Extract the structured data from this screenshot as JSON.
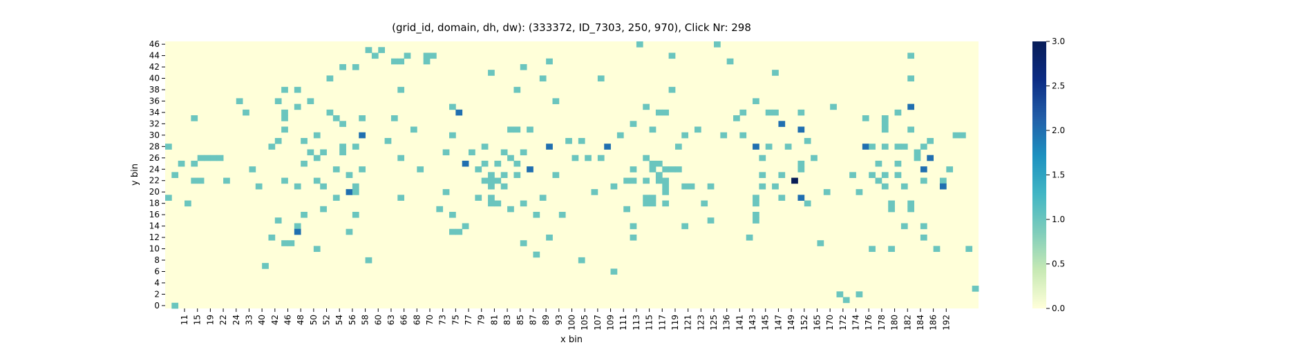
{
  "chart_data": {
    "type": "heatmap",
    "title": "(grid_id, domain, dh, dw): (333372, ID_7303, 250, 970), Click Nr: 298",
    "xlabel": "x bin",
    "ylabel": "y bin",
    "x_tick_labels": [
      "11",
      "15",
      "19",
      "22",
      "24",
      "33",
      "40",
      "42",
      "46",
      "48",
      "50",
      "52",
      "54",
      "56",
      "58",
      "60",
      "63",
      "66",
      "68",
      "70",
      "73",
      "75",
      "77",
      "79",
      "81",
      "83",
      "85",
      "87",
      "89",
      "93",
      "100",
      "105",
      "107",
      "109",
      "111",
      "113",
      "115",
      "117",
      "119",
      "121",
      "123",
      "125",
      "136",
      "141",
      "143",
      "145",
      "147",
      "149",
      "152",
      "165",
      "170",
      "172",
      "174",
      "176",
      "178",
      "180",
      "182",
      "184",
      "186",
      "192"
    ],
    "y_tick_labels": [
      "0",
      "2",
      "4",
      "6",
      "8",
      "10",
      "12",
      "14",
      "16",
      "18",
      "20",
      "22",
      "24",
      "26",
      "28",
      "30",
      "32",
      "34",
      "36",
      "38",
      "40",
      "42",
      "44",
      "46"
    ],
    "n_rows": 47,
    "colorbar": {
      "colormap": "YlGnBu",
      "range": [
        0,
        3.0
      ],
      "tick_labels": [
        "0.0",
        "0.5",
        "1.0",
        "1.5",
        "2.0",
        "2.5",
        "3.0"
      ],
      "colors": [
        "#ffffd9",
        "#c7e9b4",
        "#7fcdbb",
        "#41b6c4",
        "#1d91c0",
        "#225ea8",
        "#0c2c84",
        "#081d58"
      ]
    },
    "cells": [
      [
        0,
        19,
        1
      ],
      [
        0,
        28,
        1
      ],
      [
        1,
        0,
        1
      ],
      [
        1,
        23,
        1
      ],
      [
        2,
        25,
        1
      ],
      [
        3,
        18,
        1
      ],
      [
        4,
        33,
        1
      ],
      [
        4,
        25,
        1
      ],
      [
        4,
        22,
        1
      ],
      [
        5,
        22,
        1
      ],
      [
        5,
        26,
        1
      ],
      [
        6,
        26,
        1
      ],
      [
        7,
        26,
        1
      ],
      [
        8,
        26,
        1
      ],
      [
        9,
        22,
        1
      ],
      [
        11,
        36,
        1
      ],
      [
        12,
        34,
        1
      ],
      [
        13,
        24,
        1
      ],
      [
        14,
        21,
        1
      ],
      [
        15,
        7,
        1
      ],
      [
        16,
        12,
        1
      ],
      [
        16,
        28,
        1
      ],
      [
        17,
        36,
        1
      ],
      [
        17,
        29,
        1
      ],
      [
        17,
        15,
        1
      ],
      [
        18,
        38,
        1
      ],
      [
        18,
        34,
        1
      ],
      [
        18,
        33,
        1
      ],
      [
        18,
        31,
        1
      ],
      [
        18,
        22,
        1
      ],
      [
        18,
        11,
        1
      ],
      [
        19,
        11,
        1
      ],
      [
        20,
        38,
        1
      ],
      [
        20,
        35,
        1
      ],
      [
        20,
        21,
        1
      ],
      [
        20,
        14,
        1
      ],
      [
        20,
        13,
        2
      ],
      [
        21,
        29,
        1
      ],
      [
        21,
        25,
        1
      ],
      [
        21,
        16,
        1
      ],
      [
        22,
        36,
        1
      ],
      [
        22,
        27,
        1
      ],
      [
        23,
        30,
        1
      ],
      [
        23,
        26,
        1
      ],
      [
        23,
        22,
        1
      ],
      [
        23,
        10,
        1
      ],
      [
        24,
        27,
        1
      ],
      [
        24,
        21,
        1
      ],
      [
        24,
        17,
        1
      ],
      [
        25,
        40,
        1
      ],
      [
        25,
        34,
        1
      ],
      [
        26,
        33,
        1
      ],
      [
        26,
        24,
        1
      ],
      [
        26,
        19,
        1
      ],
      [
        27,
        42,
        1
      ],
      [
        27,
        32,
        1
      ],
      [
        27,
        28,
        1
      ],
      [
        27,
        27,
        1
      ],
      [
        28,
        23,
        1
      ],
      [
        28,
        20,
        2
      ],
      [
        28,
        13,
        1
      ],
      [
        29,
        42,
        1
      ],
      [
        29,
        28,
        1
      ],
      [
        29,
        21,
        1
      ],
      [
        29,
        20,
        1
      ],
      [
        29,
        16,
        1
      ],
      [
        30,
        33,
        1
      ],
      [
        30,
        30,
        2
      ],
      [
        30,
        24,
        1
      ],
      [
        31,
        45,
        1
      ],
      [
        31,
        8,
        1
      ],
      [
        32,
        44,
        1
      ],
      [
        33,
        45,
        1
      ],
      [
        34,
        29,
        1
      ],
      [
        35,
        43,
        1
      ],
      [
        35,
        33,
        1
      ],
      [
        36,
        43,
        1
      ],
      [
        36,
        38,
        1
      ],
      [
        36,
        26,
        1
      ],
      [
        36,
        19,
        1
      ],
      [
        37,
        44,
        1
      ],
      [
        38,
        31,
        1
      ],
      [
        39,
        24,
        1
      ],
      [
        40,
        44,
        1
      ],
      [
        40,
        43,
        1
      ],
      [
        41,
        44,
        1
      ],
      [
        42,
        17,
        1
      ],
      [
        43,
        27,
        1
      ],
      [
        43,
        20,
        1
      ],
      [
        44,
        35,
        1
      ],
      [
        44,
        30,
        1
      ],
      [
        44,
        16,
        1
      ],
      [
        44,
        13,
        1
      ],
      [
        45,
        34,
        2
      ],
      [
        45,
        13,
        1
      ],
      [
        46,
        25,
        2
      ],
      [
        46,
        14,
        1
      ],
      [
        47,
        27,
        1
      ],
      [
        48,
        24,
        1
      ],
      [
        48,
        19,
        1
      ],
      [
        49,
        28,
        1
      ],
      [
        49,
        25,
        1
      ],
      [
        49,
        22,
        1
      ],
      [
        50,
        41,
        1
      ],
      [
        50,
        23,
        1
      ],
      [
        50,
        22,
        1
      ],
      [
        50,
        21,
        1
      ],
      [
        50,
        19,
        1
      ],
      [
        50,
        18,
        1
      ],
      [
        51,
        25,
        1
      ],
      [
        51,
        22,
        1
      ],
      [
        51,
        18,
        1
      ],
      [
        52,
        27,
        1
      ],
      [
        52,
        23,
        1
      ],
      [
        52,
        21,
        1
      ],
      [
        53,
        31,
        1
      ],
      [
        53,
        26,
        1
      ],
      [
        53,
        17,
        1
      ],
      [
        54,
        38,
        1
      ],
      [
        54,
        31,
        1
      ],
      [
        54,
        25,
        1
      ],
      [
        54,
        23,
        1
      ],
      [
        55,
        42,
        1
      ],
      [
        55,
        27,
        1
      ],
      [
        55,
        18,
        1
      ],
      [
        55,
        11,
        1
      ],
      [
        56,
        31,
        1
      ],
      [
        56,
        24,
        2
      ],
      [
        57,
        16,
        1
      ],
      [
        57,
        9,
        1
      ],
      [
        58,
        40,
        1
      ],
      [
        58,
        19,
        1
      ],
      [
        59,
        43,
        1
      ],
      [
        59,
        28,
        2
      ],
      [
        59,
        12,
        1
      ],
      [
        60,
        36,
        1
      ],
      [
        60,
        23,
        1
      ],
      [
        61,
        16,
        1
      ],
      [
        62,
        29,
        1
      ],
      [
        63,
        26,
        1
      ],
      [
        64,
        29,
        1
      ],
      [
        64,
        8,
        1
      ],
      [
        65,
        26,
        1
      ],
      [
        66,
        20,
        1
      ],
      [
        67,
        40,
        1
      ],
      [
        67,
        26,
        1
      ],
      [
        68,
        28,
        2
      ],
      [
        69,
        21,
        1
      ],
      [
        69,
        6,
        1
      ],
      [
        70,
        30,
        1
      ],
      [
        71,
        22,
        1
      ],
      [
        71,
        17,
        1
      ],
      [
        72,
        32,
        1
      ],
      [
        72,
        24,
        1
      ],
      [
        72,
        22,
        1
      ],
      [
        72,
        14,
        1
      ],
      [
        72,
        12,
        1
      ],
      [
        73,
        46,
        1
      ],
      [
        74,
        35,
        1
      ],
      [
        74,
        26,
        1
      ],
      [
        74,
        22,
        1
      ],
      [
        74,
        19,
        1
      ],
      [
        74,
        18,
        1
      ],
      [
        75,
        31,
        1
      ],
      [
        75,
        25,
        1
      ],
      [
        75,
        24,
        1
      ],
      [
        75,
        19,
        1
      ],
      [
        75,
        18,
        1
      ],
      [
        76,
        34,
        1
      ],
      [
        76,
        25,
        1
      ],
      [
        76,
        23,
        1
      ],
      [
        76,
        22,
        1
      ],
      [
        77,
        34,
        1
      ],
      [
        77,
        24,
        1
      ],
      [
        77,
        22,
        1
      ],
      [
        77,
        21,
        1
      ],
      [
        77,
        20,
        1
      ],
      [
        77,
        18,
        1
      ],
      [
        78,
        44,
        1
      ],
      [
        78,
        38,
        1
      ],
      [
        78,
        24,
        1
      ],
      [
        79,
        28,
        1
      ],
      [
        79,
        24,
        1
      ],
      [
        80,
        30,
        1
      ],
      [
        80,
        21,
        1
      ],
      [
        80,
        14,
        1
      ],
      [
        81,
        21,
        1
      ],
      [
        82,
        31,
        1
      ],
      [
        83,
        18,
        1
      ],
      [
        84,
        21,
        1
      ],
      [
        84,
        15,
        1
      ],
      [
        85,
        46,
        1
      ],
      [
        86,
        30,
        1
      ],
      [
        87,
        43,
        1
      ],
      [
        88,
        33,
        1
      ],
      [
        89,
        34,
        1
      ],
      [
        89,
        30,
        1
      ],
      [
        90,
        12,
        1
      ],
      [
        91,
        36,
        1
      ],
      [
        91,
        28,
        2
      ],
      [
        91,
        19,
        1
      ],
      [
        91,
        18,
        1
      ],
      [
        91,
        16,
        1
      ],
      [
        91,
        15,
        1
      ],
      [
        92,
        26,
        1
      ],
      [
        92,
        23,
        1
      ],
      [
        92,
        21,
        1
      ],
      [
        93,
        34,
        1
      ],
      [
        93,
        28,
        1
      ],
      [
        94,
        41,
        1
      ],
      [
        94,
        34,
        1
      ],
      [
        94,
        21,
        1
      ],
      [
        95,
        32,
        2
      ],
      [
        95,
        23,
        1
      ],
      [
        95,
        19,
        1
      ],
      [
        96,
        28,
        1
      ],
      [
        97,
        22,
        3
      ],
      [
        98,
        34,
        1
      ],
      [
        98,
        31,
        2
      ],
      [
        98,
        25,
        1
      ],
      [
        98,
        24,
        1
      ],
      [
        98,
        19,
        2
      ],
      [
        99,
        29,
        1
      ],
      [
        99,
        18,
        1
      ],
      [
        100,
        26,
        1
      ],
      [
        101,
        11,
        1
      ],
      [
        102,
        20,
        1
      ],
      [
        103,
        35,
        1
      ],
      [
        104,
        2,
        1
      ],
      [
        105,
        1,
        1
      ],
      [
        106,
        23,
        1
      ],
      [
        107,
        20,
        1
      ],
      [
        107,
        2,
        1
      ],
      [
        108,
        33,
        1
      ],
      [
        108,
        28,
        2
      ],
      [
        109,
        28,
        1
      ],
      [
        109,
        23,
        1
      ],
      [
        109,
        10,
        1
      ],
      [
        110,
        25,
        1
      ],
      [
        110,
        22,
        1
      ],
      [
        111,
        33,
        1
      ],
      [
        111,
        32,
        1
      ],
      [
        111,
        31,
        1
      ],
      [
        111,
        28,
        1
      ],
      [
        111,
        23,
        1
      ],
      [
        111,
        21,
        1
      ],
      [
        112,
        18,
        1
      ],
      [
        112,
        17,
        1
      ],
      [
        112,
        10,
        1
      ],
      [
        113,
        34,
        1
      ],
      [
        113,
        28,
        1
      ],
      [
        113,
        25,
        1
      ],
      [
        113,
        23,
        1
      ],
      [
        114,
        28,
        1
      ],
      [
        114,
        21,
        1
      ],
      [
        114,
        14,
        1
      ],
      [
        115,
        44,
        1
      ],
      [
        115,
        40,
        1
      ],
      [
        115,
        35,
        2
      ],
      [
        115,
        31,
        1
      ],
      [
        115,
        18,
        1
      ],
      [
        115,
        17,
        1
      ],
      [
        116,
        27,
        1
      ],
      [
        116,
        26,
        1
      ],
      [
        117,
        28,
        1
      ],
      [
        117,
        24,
        2
      ],
      [
        117,
        22,
        1
      ],
      [
        117,
        14,
        1
      ],
      [
        117,
        12,
        1
      ],
      [
        118,
        29,
        1
      ],
      [
        118,
        26,
        2
      ],
      [
        119,
        10,
        1
      ],
      [
        120,
        22,
        1
      ],
      [
        120,
        21,
        2
      ],
      [
        121,
        24,
        1
      ],
      [
        122,
        30,
        1
      ],
      [
        123,
        30,
        1
      ],
      [
        124,
        10,
        1
      ],
      [
        125,
        3,
        1
      ]
    ]
  }
}
